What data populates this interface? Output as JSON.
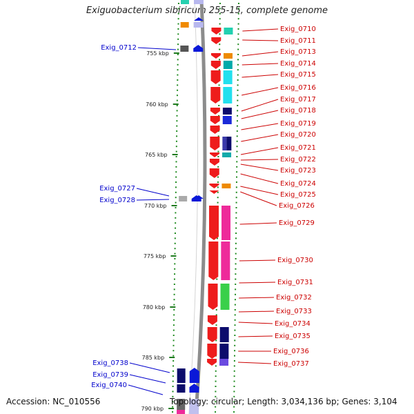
{
  "title": "Exiguobacterium sibiricum 255-15, complete genome",
  "footer": {
    "accession": "Accession: NC_010556",
    "stats": "Topology: circular; Length: 3,034,136 bp; Genes: 3,104"
  },
  "colors": {
    "forward_label": "#0000cc",
    "reverse_label": "#cc0000",
    "ruler_tick": "#1e7a1e",
    "backbone": "#888888"
  },
  "ruler": {
    "unit": "kbp",
    "ticks": [
      "755 kbp",
      "760 kbp",
      "765 kbp",
      "770 kbp",
      "775 kbp",
      "780 kbp",
      "785 kbp",
      "790 kbp"
    ]
  },
  "forward_genes": [
    "Exig_0712",
    "Exig_0727",
    "Exig_0728",
    "Exig_0738",
    "Exig_0739",
    "Exig_0740"
  ],
  "reverse_genes": [
    "Exig_0710",
    "Exig_0711",
    "Exig_0713",
    "Exig_0714",
    "Exig_0715",
    "Exig_0716",
    "Exig_0717",
    "Exig_0718",
    "Exig_0719",
    "Exig_0720",
    "Exig_0721",
    "Exig_0722",
    "Exig_0723",
    "Exig_0724",
    "Exig_0725",
    "Exig_0726",
    "Exig_0729",
    "Exig_0730",
    "Exig_0731",
    "Exig_0732",
    "Exig_0733",
    "Exig_0734",
    "Exig_0735",
    "Exig_0736",
    "Exig_0737"
  ]
}
